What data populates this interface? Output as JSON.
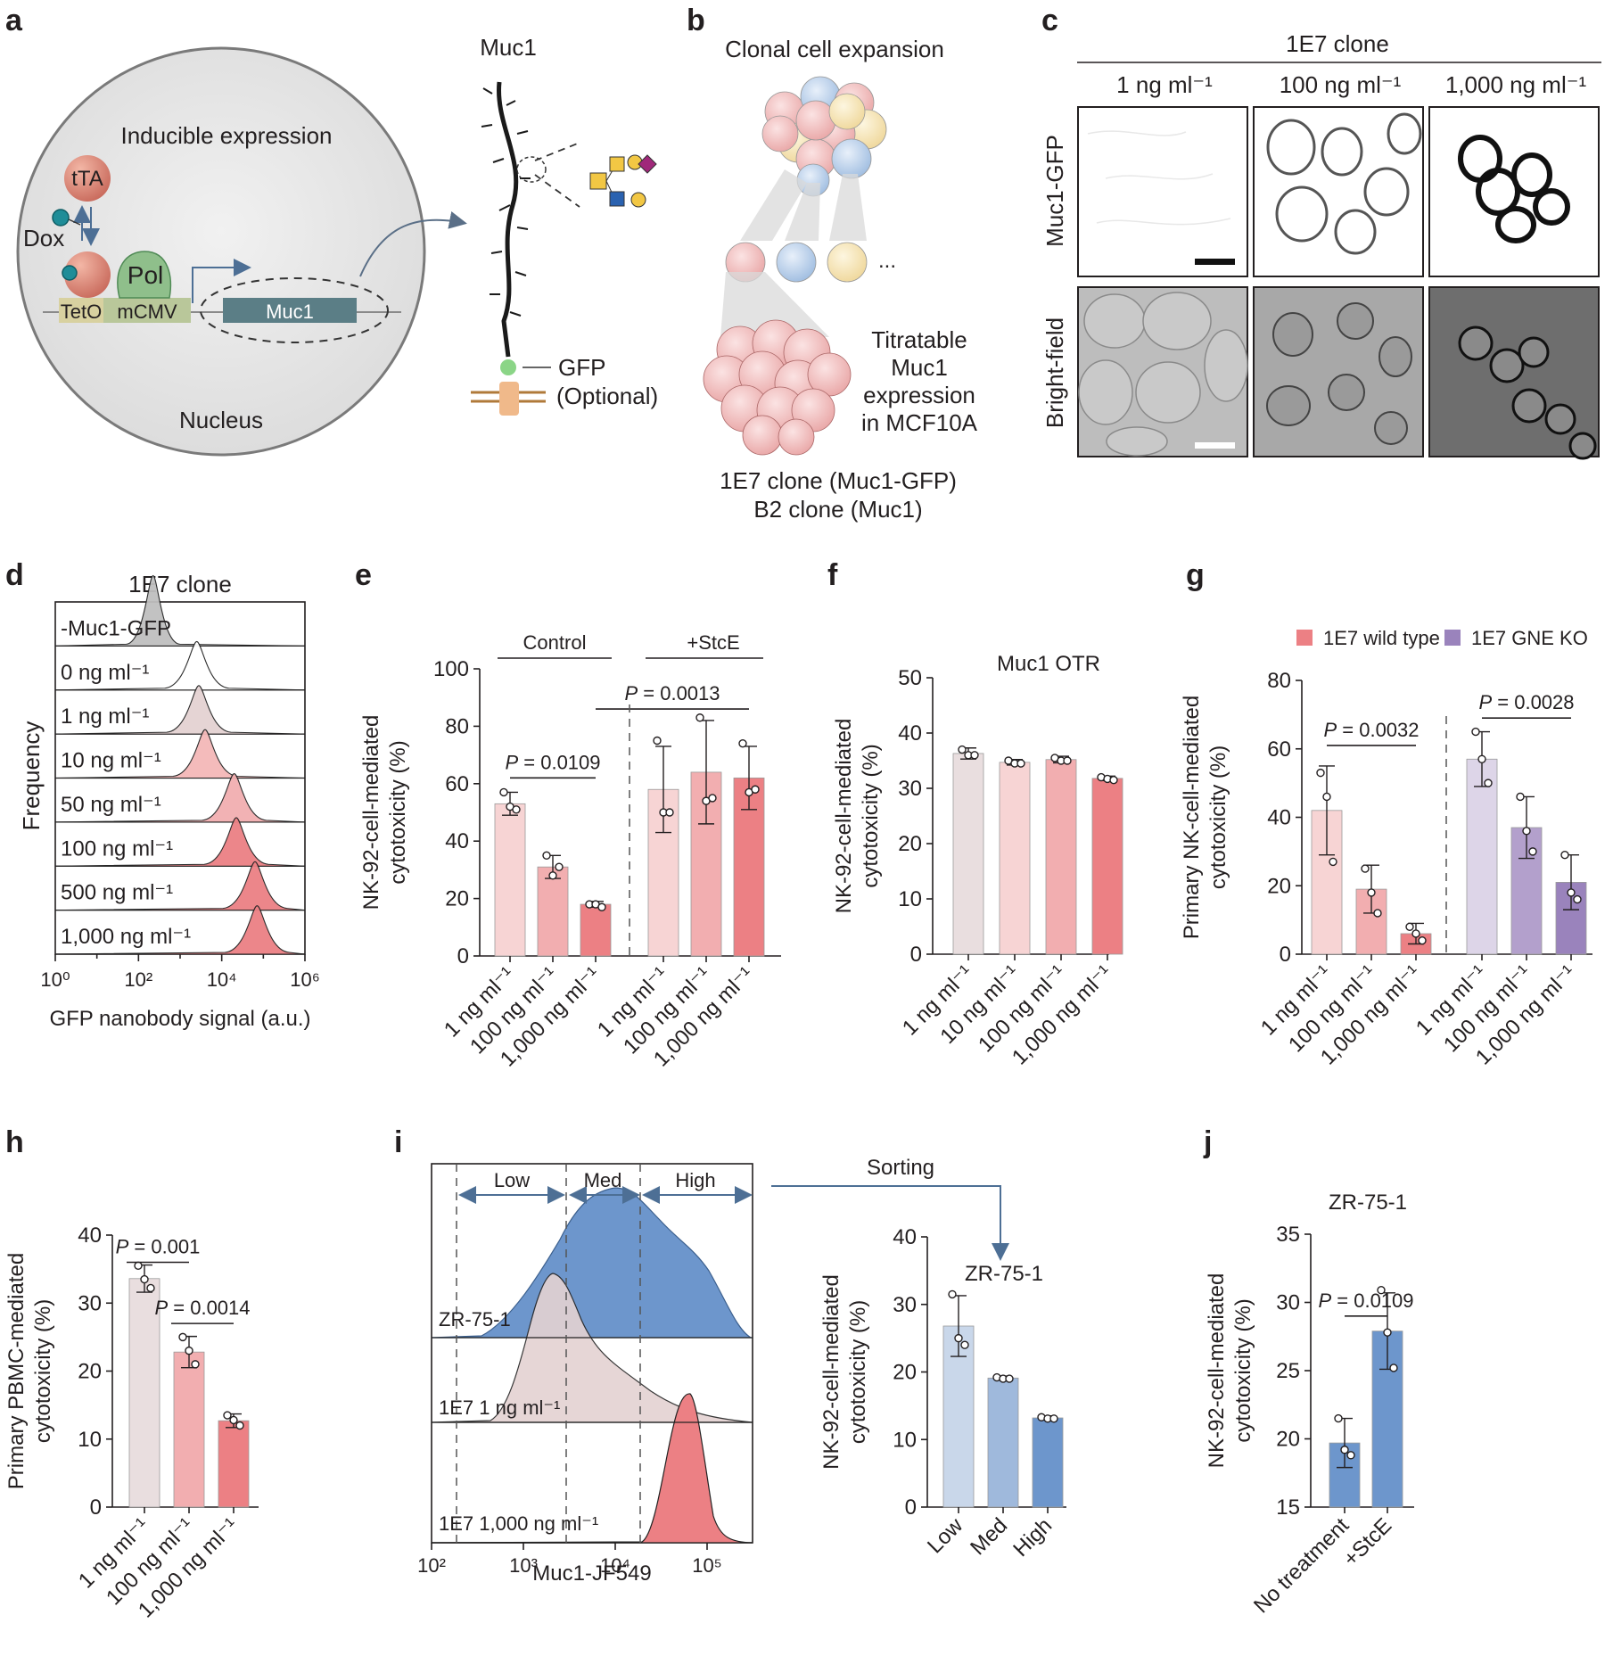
{
  "colors": {
    "pink1": "#f7d4d4",
    "pink2": "#f2aeb0",
    "pink3": "#ec8084",
    "grey": "#e9dedf",
    "purple1": "#ddd5e8",
    "purple2": "#b3a0cc",
    "purple3": "#9a83bc",
    "blue1": "#c9d7ea",
    "blue2": "#9fb9dc",
    "blue3": "#6d96cc",
    "teal": "#5b7e86",
    "gray_fill": "#bfbfbf"
  },
  "panel_labels": [
    "a",
    "b",
    "c",
    "d",
    "e",
    "f",
    "g",
    "h",
    "i",
    "j"
  ],
  "a": {
    "title": "Muc1",
    "inducible": "Inducible expression",
    "tta": "tTA",
    "dox": "Dox",
    "pol": "Pol",
    "teto": "TetO",
    "mcmv": "mCMV",
    "muc1_gene": "Muc1",
    "nucleus": "Nucleus",
    "gfp": "GFP",
    "optional": "(Optional)"
  },
  "b": {
    "title": "Clonal cell expansion",
    "ellipsis": "...",
    "titr1": "Titratable",
    "titr2": "Muc1",
    "titr3": "expression",
    "titr4": "in MCF10A",
    "clone1": "1E7 clone (Muc1-GFP)",
    "clone2": "B2 clone (Muc1)"
  },
  "c": {
    "header": "1E7 clone",
    "col1": "1 ng ml⁻¹",
    "col2": "100 ng ml⁻¹",
    "col3": "1,000 ng ml⁻¹",
    "row1": "Muc1-GFP",
    "row2": "Bright-field"
  },
  "d": {
    "title": "1E7 clone",
    "ylabel": "Frequency",
    "xlabel": "GFP nanobody signal (a.u.)",
    "rows": [
      "-Muc1-GFP",
      "0 ng ml⁻¹",
      "1 ng ml⁻¹",
      "10 ng ml⁻¹",
      "50 ng ml⁻¹",
      "100 ng ml⁻¹",
      "500 ng ml⁻¹",
      "1,000 ng ml⁻¹"
    ],
    "xticks": [
      "10⁰",
      "10²",
      "10⁴",
      "10⁶"
    ]
  },
  "chart_data": [
    {
      "panel": "e",
      "type": "bar",
      "ylabel": "NK-92-cell-mediated cytotoxicity (%)",
      "ylim": [
        0,
        100
      ],
      "yticks": [
        0,
        20,
        40,
        60,
        80,
        100
      ],
      "groups": [
        "Control",
        "+StcE"
      ],
      "categories": [
        "1 ng ml⁻¹",
        "100 ng ml⁻¹",
        "1,000 ng ml⁻¹",
        "1 ng ml⁻¹",
        "100 ng ml⁻¹",
        "1,000 ng ml⁻¹"
      ],
      "values": [
        53,
        31,
        18,
        58,
        64,
        62
      ],
      "errors": [
        4,
        4,
        1,
        15,
        18,
        11
      ],
      "points": [
        [
          57,
          52,
          51
        ],
        [
          35,
          28,
          31
        ],
        [
          18,
          18,
          17
        ],
        [
          75,
          50,
          50
        ],
        [
          83,
          54,
          55
        ],
        [
          74,
          57,
          58
        ]
      ],
      "pvalues": [
        "P = 0.0109",
        "P = 0.0013"
      ]
    },
    {
      "panel": "f",
      "type": "bar",
      "title": "Muc1 OTR",
      "ylabel": "NK-92-cell-mediated cytotoxicity (%)",
      "ylim": [
        0,
        50
      ],
      "yticks": [
        0,
        10,
        20,
        30,
        40,
        50
      ],
      "categories": [
        "1 ng ml⁻¹",
        "10 ng ml⁻¹",
        "100 ng ml⁻¹",
        "1,000 ng ml⁻¹"
      ],
      "values": [
        36.3,
        34.7,
        35.2,
        31.8
      ],
      "errors": [
        1.0,
        0.5,
        0.6,
        0.4
      ],
      "points": [
        [
          37,
          36,
          36
        ],
        [
          35,
          34.5,
          34.5
        ],
        [
          35.5,
          35,
          35
        ],
        [
          32,
          31.7,
          31.5
        ]
      ]
    },
    {
      "panel": "g",
      "type": "bar",
      "ylabel": "Primary NK-cell-mediated cytotoxicity (%)",
      "ylim": [
        0,
        80
      ],
      "yticks": [
        0,
        20,
        40,
        60,
        80
      ],
      "legend": [
        "1E7 wild type",
        "1E7 GNE KO"
      ],
      "categories": [
        "1 ng ml⁻¹",
        "100 ng ml⁻¹",
        "1,000 ng ml⁻¹",
        "1 ng ml⁻¹",
        "100 ng ml⁻¹",
        "1,000 ng ml⁻¹"
      ],
      "values": [
        42,
        19,
        6,
        57,
        37,
        21
      ],
      "errors": [
        13,
        7,
        3,
        8,
        9,
        8
      ],
      "points": [
        [
          53,
          46,
          27
        ],
        [
          25,
          18,
          12
        ],
        [
          8,
          6,
          4
        ],
        [
          65,
          57,
          50
        ],
        [
          46,
          36,
          30
        ],
        [
          29,
          18,
          16
        ]
      ],
      "pvalues": [
        "P = 0.0032",
        "P = 0.0028"
      ]
    },
    {
      "panel": "h",
      "type": "bar",
      "ylabel": "Primary PBMC-mediated cytotoxicity (%)",
      "ylim": [
        0,
        40
      ],
      "yticks": [
        0,
        10,
        20,
        30,
        40
      ],
      "categories": [
        "1 ng ml⁻¹",
        "100 ng ml⁻¹",
        "1,000 ng ml⁻¹"
      ],
      "values": [
        33.6,
        22.8,
        12.7
      ],
      "errors": [
        2,
        2.3,
        1
      ],
      "points": [
        [
          35.5,
          33.5,
          32.2
        ],
        [
          25,
          23,
          21
        ],
        [
          13.5,
          12.8,
          12
        ]
      ],
      "pvalues": [
        "P = 0.001",
        "P = 0.0014"
      ]
    },
    {
      "panel": "i",
      "type": "bar",
      "title": "ZR-75-1",
      "ylabel": "NK-92-cell-mediated cytotoxicity (%)",
      "ylim": [
        0,
        40
      ],
      "yticks": [
        0,
        10,
        20,
        30,
        40
      ],
      "categories": [
        "Low",
        "Med",
        "High"
      ],
      "values": [
        26.8,
        19.1,
        13.2
      ],
      "errors": [
        4.5,
        0.3,
        0.3
      ],
      "points": [
        [
          31.5,
          25,
          24
        ],
        [
          19.2,
          19,
          19
        ],
        [
          13.3,
          13.1,
          13.1
        ]
      ]
    },
    {
      "panel": "j",
      "type": "bar",
      "title": "ZR-75-1",
      "ylabel": "NK-92-cell-mediated cytotoxicity (%)",
      "ylim": [
        15,
        35
      ],
      "yticks": [
        15,
        20,
        25,
        30,
        35
      ],
      "categories": [
        "No treatment",
        "+StcE"
      ],
      "values": [
        19.7,
        27.9
      ],
      "errors": [
        1.8,
        2.8
      ],
      "points": [
        [
          21.5,
          19.2,
          18.8
        ],
        [
          30.9,
          27.8,
          25.2
        ]
      ],
      "pvalues": [
        "P = 0.0109"
      ]
    }
  ],
  "i": {
    "low": "Low",
    "med": "Med",
    "high": "High",
    "sorting": "Sorting",
    "zr": "ZR-75-1",
    "e1": "1E7 1 ng ml⁻¹",
    "e1000": "1E7 1,000 ng ml⁻¹",
    "xlabel": "Muc1-JF549",
    "xticks": [
      "10²",
      "10³",
      "10⁴",
      "10⁵"
    ]
  }
}
